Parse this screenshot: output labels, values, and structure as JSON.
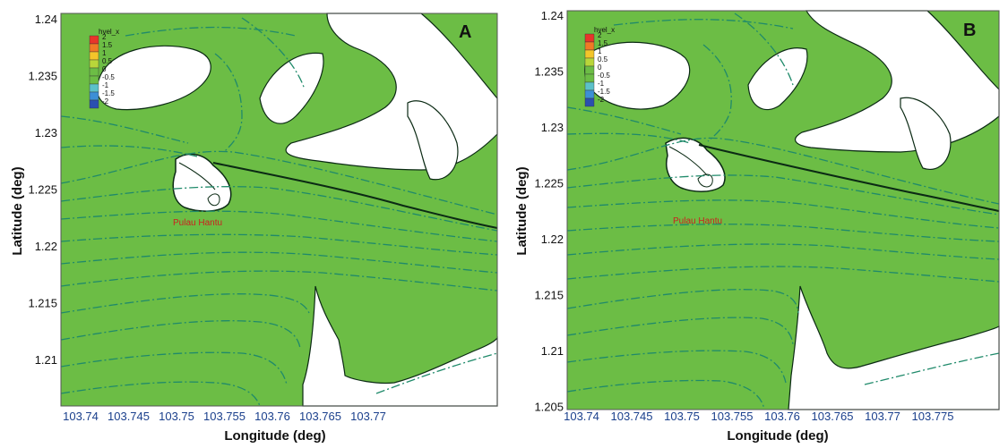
{
  "colors": {
    "water": "#6cbd45",
    "land": "#ffffff",
    "streamline": "#1f8a6a",
    "coast": "#0b2a14",
    "label_red": "#cc1f1f",
    "tick_blue": "#1a3f8c",
    "tick_black": "#111111"
  },
  "panels": [
    {
      "letter": "A",
      "ylabel": "Latitude (deg)",
      "xlabel": "Longitude (deg)",
      "place_label": "Pulau Hantu",
      "legend_title": "hvel_x",
      "legend_levels": [
        "2",
        "1.5",
        "1",
        "0.5",
        "0",
        "-0.5",
        "-1",
        "-1.5",
        "-2"
      ],
      "legend_colors": [
        "#e8352a",
        "#f07a25",
        "#f3c52a",
        "#b9d63a",
        "#6cbd45",
        "#6cbd45",
        "#5cc1c9",
        "#3d8fd6",
        "#2a4fb0"
      ],
      "yticks": [
        "1.24",
        "1.235",
        "1.23",
        "1.225",
        "1.22",
        "1.215",
        "1.21"
      ],
      "xticks": [
        "103.74",
        "103.745",
        "103.75",
        "103.755",
        "103.76",
        "103.765",
        "103.77"
      ]
    },
    {
      "letter": "B",
      "ylabel": "Latitude (deg)",
      "xlabel": "Longitude (deg)",
      "place_label": "Pulau Hantu",
      "legend_title": "hvel_x",
      "legend_levels": [
        "2",
        "1.5",
        "1",
        "0.5",
        "0",
        "-0.5",
        "-1",
        "-1.5",
        "-2"
      ],
      "legend_colors": [
        "#e8352a",
        "#f07a25",
        "#f3c52a",
        "#b9d63a",
        "#6cbd45",
        "#6cbd45",
        "#5cc1c9",
        "#3d8fd6",
        "#2a4fb0"
      ],
      "yticks": [
        "1.24",
        "1.235",
        "1.23",
        "1.225",
        "1.22",
        "1.215",
        "1.21",
        "1.205"
      ],
      "xticks": [
        "103.74",
        "103.745",
        "103.75",
        "103.755",
        "103.76",
        "103.765",
        "103.77",
        "103.775"
      ]
    }
  ]
}
